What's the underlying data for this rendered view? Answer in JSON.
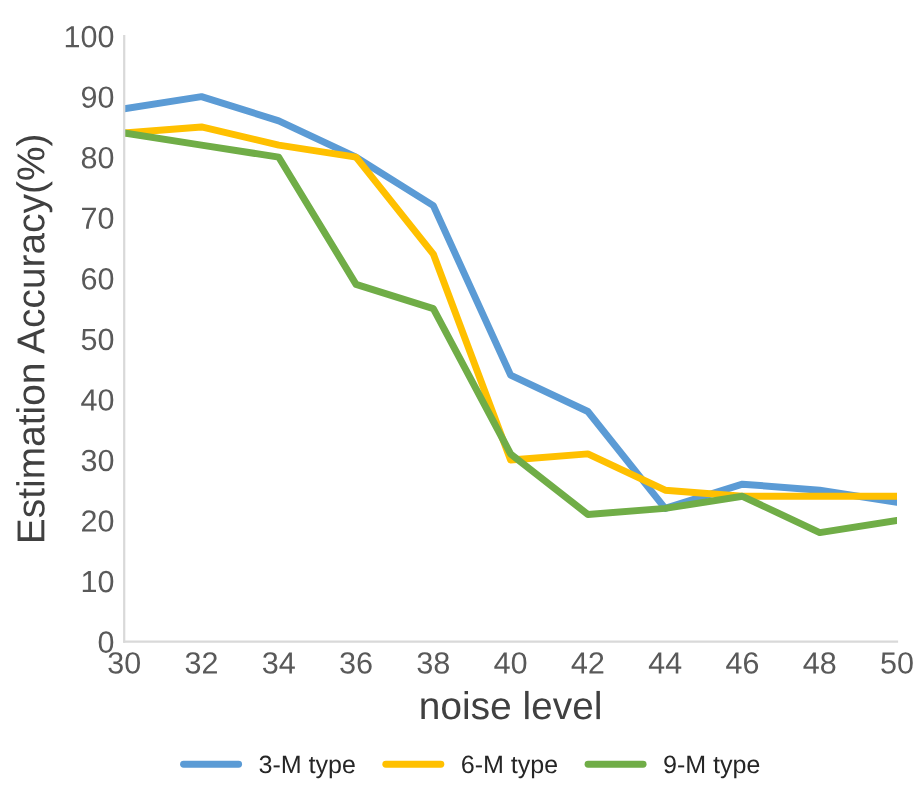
{
  "chart_data": {
    "type": "line",
    "xlabel": "noise level",
    "ylabel": "Estimation Accuracy(%)",
    "x": [
      30,
      32,
      34,
      36,
      38,
      40,
      42,
      44,
      46,
      48,
      50
    ],
    "series": [
      {
        "name": "3-M type",
        "color": "#5b9bd5",
        "values": [
          88,
          90,
          86,
          80,
          72,
          44,
          38,
          22,
          26,
          25,
          23
        ]
      },
      {
        "name": "6-M type",
        "color": "#ffc000",
        "values": [
          84,
          85,
          82,
          80,
          64,
          30,
          31,
          25,
          24,
          24,
          24
        ]
      },
      {
        "name": "9-M type",
        "color": "#70ad47",
        "values": [
          84,
          82,
          80,
          59,
          55,
          31,
          21,
          22,
          24,
          18,
          20
        ]
      }
    ],
    "xlim": [
      30,
      50
    ],
    "xticks": [
      30,
      32,
      34,
      36,
      38,
      40,
      42,
      44,
      46,
      48,
      50
    ],
    "ylim": [
      0,
      100
    ],
    "yticks": [
      0,
      10,
      20,
      30,
      40,
      50,
      60,
      70,
      80,
      90,
      100
    ],
    "grid": false,
    "legend": "bottom",
    "marker": "none",
    "line_style": "solid"
  }
}
